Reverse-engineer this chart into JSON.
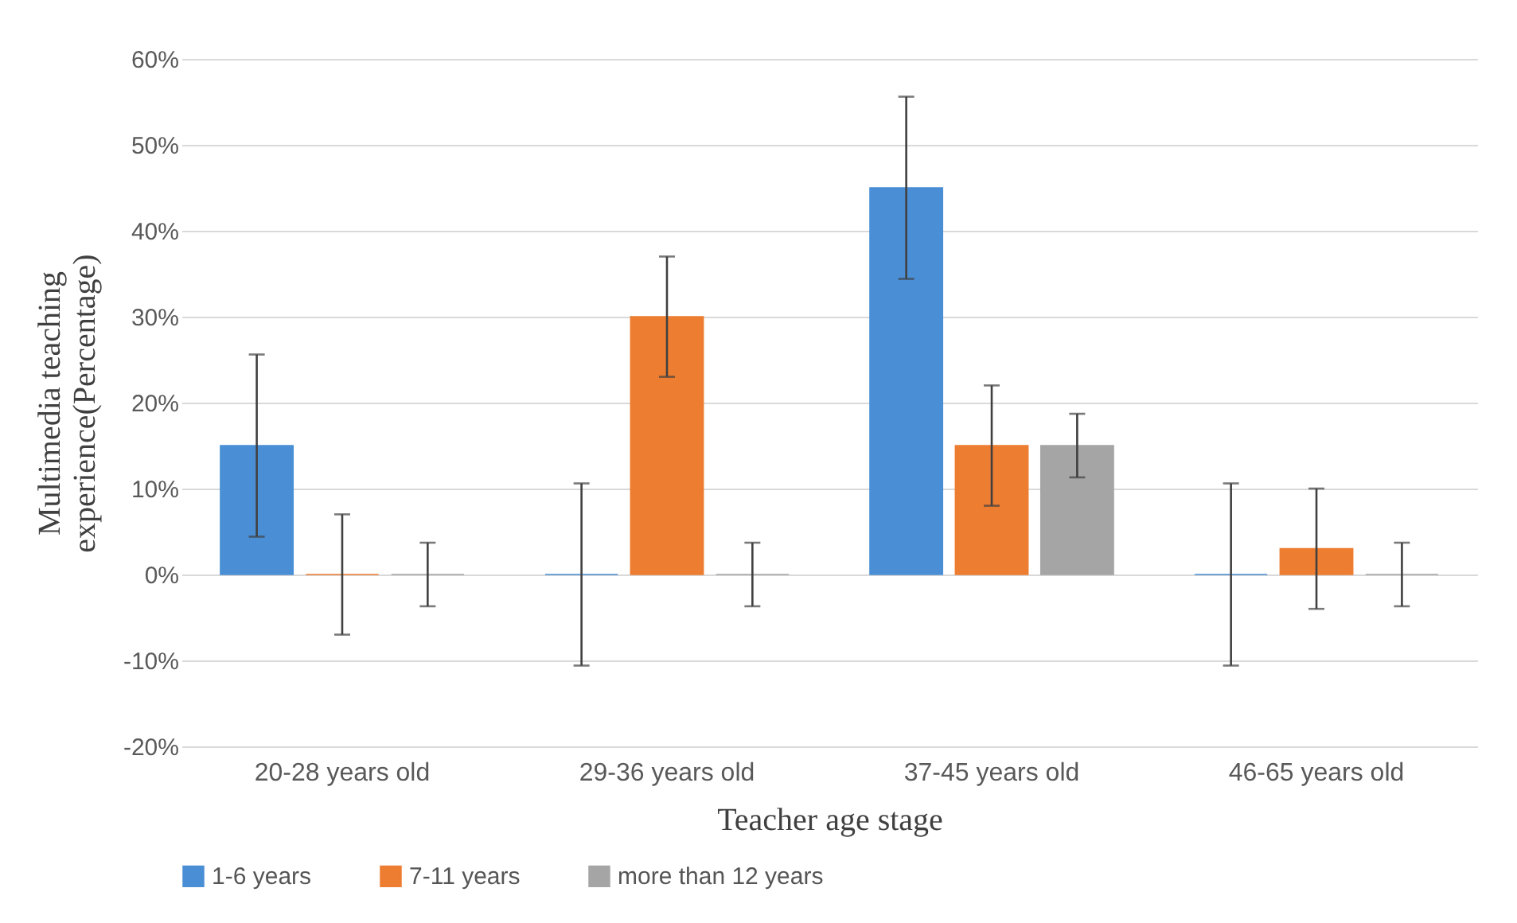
{
  "chart_data": {
    "type": "bar",
    "xlabel": "Teacher age stage",
    "ylabel": "Multimedia teaching experience(Percentage)",
    "categories": [
      "20-28 years old",
      "29-36 years old",
      "37-45 years old",
      "46-65 years old"
    ],
    "series": [
      {
        "name": "1-6 years",
        "color": "#4a8fd5",
        "values": [
          15,
          0,
          45,
          0
        ],
        "errors": [
          10.6,
          10.6,
          10.6,
          10.6
        ]
      },
      {
        "name": "7-11 years",
        "color": "#ed7d31",
        "values": [
          0,
          30,
          15,
          3
        ],
        "errors": [
          7,
          7,
          7,
          7
        ]
      },
      {
        "name": "more than 12 years",
        "color": "#a5a5a5",
        "values": [
          0,
          0,
          15,
          0
        ],
        "errors": [
          3.7,
          3.7,
          3.7,
          3.7
        ]
      }
    ],
    "ylim": [
      -20,
      60
    ],
    "yticks": [
      {
        "value": -20,
        "label": "-20%"
      },
      {
        "value": -10,
        "label": "-10%"
      },
      {
        "value": 0,
        "label": "0%"
      },
      {
        "value": 10,
        "label": "10%"
      },
      {
        "value": 20,
        "label": "20%"
      },
      {
        "value": 30,
        "label": "30%"
      },
      {
        "value": 40,
        "label": "40%"
      },
      {
        "value": 50,
        "label": "50%"
      },
      {
        "value": 60,
        "label": "60%"
      }
    ],
    "grid": "y",
    "legend": "bottom"
  }
}
